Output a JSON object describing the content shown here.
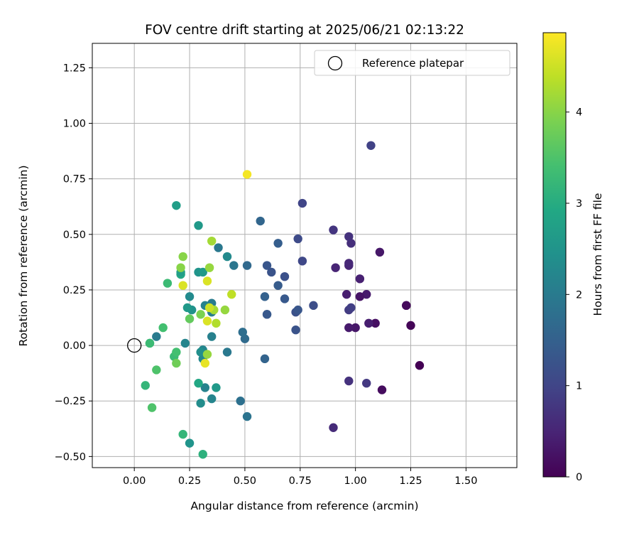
{
  "chart_data": {
    "type": "scatter",
    "title": "FOV centre drift starting at 2025/06/21 02:13:22",
    "xlabel": "Angular distance from reference (arcmin)",
    "ylabel": "Rotation from reference (arcmin)",
    "xlim": [
      -0.19,
      1.73
    ],
    "ylim": [
      -0.55,
      1.36
    ],
    "xticks": [
      0.0,
      0.25,
      0.5,
      0.75,
      1.0,
      1.25,
      1.5
    ],
    "xtick_labels": [
      "0.00",
      "0.25",
      "0.50",
      "0.75",
      "1.00",
      "1.25",
      "1.50"
    ],
    "yticks": [
      -0.5,
      -0.25,
      0.0,
      0.25,
      0.5,
      0.75,
      1.0,
      1.25
    ],
    "ytick_labels": [
      "−0.50",
      "−0.25",
      "0.00",
      "0.25",
      "0.50",
      "0.75",
      "1.00",
      "1.25"
    ],
    "grid": true,
    "legend": {
      "position": "top-right",
      "entries": [
        "Reference platepar"
      ]
    },
    "reference_point": {
      "name": "Reference platepar",
      "x": 0.0,
      "y": 0.0
    },
    "colorbar": {
      "label": "Hours from first FF file",
      "colormap": "viridis",
      "range": [
        0,
        4.87
      ],
      "ticks": [
        0,
        1,
        2,
        3,
        4
      ],
      "tick_labels": [
        "0",
        "1",
        "2",
        "3",
        "4"
      ]
    },
    "points": [
      [
        1.29,
        -0.09,
        0.0
      ],
      [
        1.25,
        0.09,
        0.05
      ],
      [
        1.23,
        0.18,
        0.1
      ],
      [
        1.23,
        0.18,
        0.12
      ],
      [
        1.12,
        -0.2,
        0.15
      ],
      [
        1.09,
        0.1,
        0.2
      ],
      [
        1.11,
        0.42,
        0.3
      ],
      [
        1.06,
        0.1,
        0.4
      ],
      [
        1.05,
        0.23,
        0.35
      ],
      [
        1.02,
        0.22,
        0.25
      ],
      [
        1.02,
        0.3,
        0.45
      ],
      [
        1.0,
        0.08,
        0.3
      ],
      [
        0.97,
        0.08,
        0.35
      ],
      [
        0.96,
        0.23,
        0.4
      ],
      [
        0.97,
        0.36,
        0.5
      ],
      [
        0.97,
        0.37,
        0.55
      ],
      [
        0.98,
        0.46,
        0.65
      ],
      [
        0.97,
        0.49,
        0.7
      ],
      [
        0.9,
        0.52,
        0.75
      ],
      [
        0.91,
        0.35,
        0.5
      ],
      [
        0.9,
        -0.37,
        0.6
      ],
      [
        0.97,
        -0.16,
        0.7
      ],
      [
        1.05,
        -0.17,
        0.8
      ],
      [
        0.97,
        0.16,
        0.85
      ],
      [
        0.98,
        0.17,
        0.9
      ],
      [
        1.07,
        0.9,
        0.95
      ],
      [
        0.76,
        0.64,
        1.0
      ],
      [
        0.76,
        0.38,
        1.05
      ],
      [
        0.74,
        0.48,
        1.1
      ],
      [
        0.81,
        0.18,
        1.15
      ],
      [
        0.73,
        0.15,
        1.2
      ],
      [
        0.73,
        0.07,
        1.25
      ],
      [
        0.74,
        0.16,
        1.3
      ],
      [
        0.68,
        0.31,
        1.2
      ],
      [
        0.68,
        0.21,
        1.35
      ],
      [
        0.65,
        0.27,
        1.4
      ],
      [
        0.65,
        0.46,
        1.45
      ],
      [
        0.6,
        0.36,
        1.3
      ],
      [
        0.62,
        0.33,
        1.25
      ],
      [
        0.6,
        0.14,
        1.4
      ],
      [
        0.6,
        0.14,
        1.35
      ],
      [
        0.59,
        0.22,
        1.5
      ],
      [
        0.59,
        -0.06,
        1.55
      ],
      [
        0.57,
        0.56,
        1.6
      ],
      [
        0.51,
        0.36,
        1.65
      ],
      [
        0.5,
        0.03,
        1.7
      ],
      [
        0.49,
        0.06,
        1.75
      ],
      [
        0.48,
        -0.25,
        1.8
      ],
      [
        0.51,
        -0.32,
        1.85
      ],
      [
        0.45,
        0.36,
        1.9
      ],
      [
        0.42,
        0.4,
        2.3
      ],
      [
        0.42,
        -0.03,
        1.95
      ],
      [
        0.38,
        0.44,
        1.95
      ],
      [
        0.35,
        0.19,
        2.0
      ],
      [
        0.35,
        0.15,
        2.05
      ],
      [
        0.35,
        0.04,
        2.1
      ],
      [
        0.35,
        -0.24,
        2.2
      ],
      [
        0.37,
        -0.19,
        2.6
      ],
      [
        0.32,
        0.18,
        2.15
      ],
      [
        0.31,
        -0.02,
        2.2
      ],
      [
        0.31,
        -0.06,
        2.25
      ],
      [
        0.32,
        -0.19,
        2.15
      ],
      [
        0.3,
        -0.26,
        2.35
      ],
      [
        0.29,
        0.54,
        2.6
      ],
      [
        0.29,
        0.33,
        2.5
      ],
      [
        0.3,
        -0.03,
        2.4
      ],
      [
        0.26,
        0.16,
        2.45
      ],
      [
        0.25,
        0.22,
        2.3
      ],
      [
        0.25,
        -0.44,
        2.5
      ],
      [
        0.23,
        0.01,
        2.2
      ],
      [
        0.24,
        0.17,
        2.6
      ],
      [
        0.21,
        0.32,
        2.9
      ],
      [
        0.21,
        0.33,
        2.7
      ],
      [
        0.19,
        0.63,
        2.7
      ],
      [
        0.29,
        -0.17,
        2.9
      ],
      [
        0.31,
        -0.49,
        3.1
      ],
      [
        0.22,
        -0.4,
        3.2
      ],
      [
        0.15,
        0.28,
        3.3
      ],
      [
        0.13,
        0.08,
        3.4
      ],
      [
        0.1,
        0.04,
        2.0
      ],
      [
        0.07,
        0.01,
        2.8
      ],
      [
        0.07,
        0.01,
        3.3
      ],
      [
        0.05,
        -0.18,
        3.2
      ],
      [
        0.1,
        -0.11,
        3.5
      ],
      [
        0.08,
        -0.28,
        3.5
      ],
      [
        0.18,
        -0.05,
        3.3
      ],
      [
        0.19,
        -0.03,
        3.4
      ],
      [
        0.19,
        -0.08,
        3.8
      ],
      [
        0.25,
        0.12,
        3.7
      ],
      [
        0.31,
        0.33,
        2.6
      ],
      [
        0.3,
        0.14,
        3.9
      ],
      [
        0.22,
        0.4,
        4.0
      ],
      [
        0.21,
        0.35,
        4.0
      ],
      [
        0.22,
        0.27,
        4.6
      ],
      [
        0.33,
        0.29,
        4.6
      ],
      [
        0.34,
        0.35,
        4.1
      ],
      [
        0.35,
        0.47,
        4.2
      ],
      [
        0.36,
        0.16,
        4.2
      ],
      [
        0.37,
        0.1,
        4.3
      ],
      [
        0.33,
        0.11,
        4.6
      ],
      [
        0.34,
        0.17,
        4.5
      ],
      [
        0.33,
        -0.04,
        4.1
      ],
      [
        0.32,
        -0.08,
        4.7
      ],
      [
        0.41,
        0.16,
        4.1
      ],
      [
        0.44,
        0.23,
        4.4
      ],
      [
        0.51,
        0.77,
        4.8
      ]
    ]
  }
}
